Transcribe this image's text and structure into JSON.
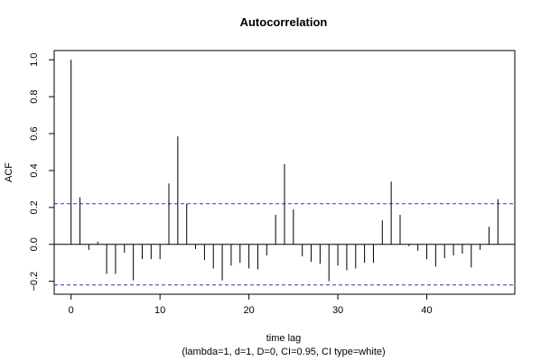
{
  "chart_data": {
    "type": "bar",
    "title": "Autocorrelation",
    "xlabel": "time lag",
    "subtitle": "(lambda=1, d=1, D=0, CI=0.95, CI type=white)",
    "ylabel": "ACF",
    "xlim": [
      -1.9,
      49.9
    ],
    "ylim": [
      -0.27,
      1.05
    ],
    "x_ticks": [
      "0",
      "10",
      "20",
      "30",
      "40"
    ],
    "y_ticks": [
      "−0.2",
      "0.0",
      "0.2",
      "0.4",
      "0.6",
      "0.8",
      "1.0"
    ],
    "x_tick_values": [
      0,
      10,
      20,
      30,
      40
    ],
    "y_tick_values": [
      -0.2,
      0.0,
      0.2,
      0.4,
      0.6,
      0.8,
      1.0
    ],
    "confidence_band": [
      0.22,
      -0.22
    ],
    "confidence_color": "#3333cc",
    "lags": [
      0,
      1,
      2,
      3,
      4,
      5,
      6,
      7,
      8,
      9,
      10,
      11,
      12,
      13,
      14,
      15,
      16,
      17,
      18,
      19,
      20,
      21,
      22,
      23,
      24,
      25,
      26,
      27,
      28,
      29,
      30,
      31,
      32,
      33,
      34,
      35,
      36,
      37,
      38,
      39,
      40,
      41,
      42,
      43,
      44,
      45,
      46,
      47,
      48
    ],
    "values": [
      1.0,
      0.255,
      -0.03,
      0.015,
      -0.16,
      -0.16,
      -0.045,
      -0.195,
      -0.08,
      -0.08,
      -0.08,
      0.33,
      0.585,
      0.22,
      -0.025,
      -0.085,
      -0.13,
      -0.195,
      -0.115,
      -0.1,
      -0.13,
      -0.135,
      -0.06,
      0.16,
      0.435,
      0.19,
      -0.065,
      -0.095,
      -0.105,
      -0.2,
      -0.115,
      -0.14,
      -0.13,
      -0.1,
      -0.1,
      0.13,
      0.34,
      0.16,
      -0.01,
      -0.035,
      -0.08,
      -0.12,
      -0.075,
      -0.06,
      -0.05,
      -0.125,
      -0.03,
      0.095,
      0.245
    ]
  }
}
